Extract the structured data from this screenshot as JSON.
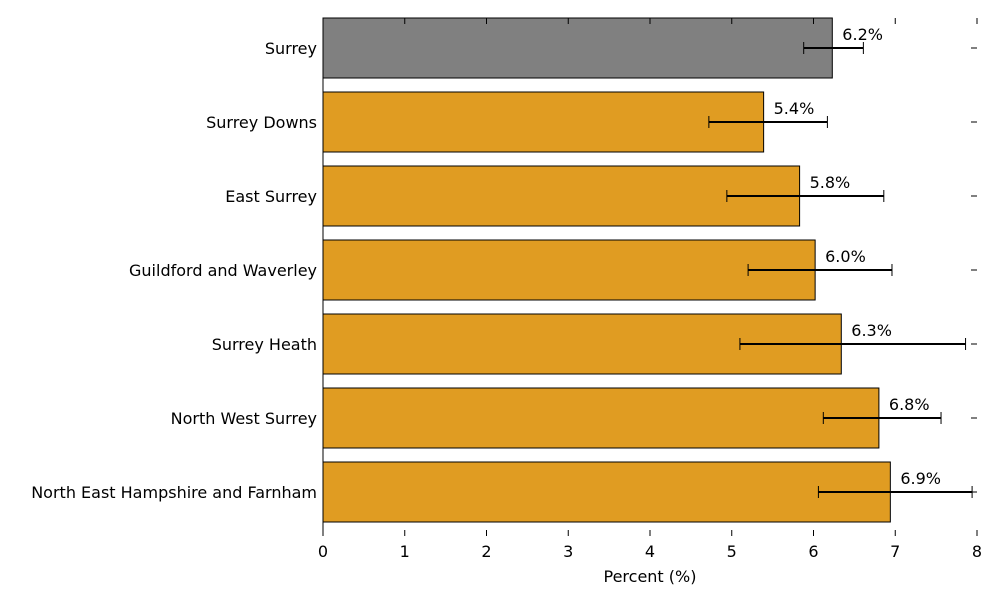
{
  "chart_data": {
    "type": "bar",
    "orientation": "horizontal",
    "categories": [
      "Surrey",
      "Surrey Downs",
      "East Surrey",
      "Guildford and Waverley",
      "Surrey Heath",
      "North West Surrey",
      "North East Hampshire and Farnham"
    ],
    "values": [
      6.23,
      5.39,
      5.83,
      6.02,
      6.34,
      6.8,
      6.94
    ],
    "data_labels": [
      "6.2%",
      "5.4%",
      "5.8%",
      "6.0%",
      "6.3%",
      "6.8%",
      "6.9%"
    ],
    "error_low": [
      5.88,
      4.72,
      4.94,
      5.2,
      5.1,
      6.12,
      6.06
    ],
    "error_high": [
      6.61,
      6.17,
      6.86,
      6.96,
      7.86,
      7.56,
      7.94
    ],
    "bar_colors": [
      "#808080",
      "#E09C22",
      "#E09C22",
      "#E09C22",
      "#E09C22",
      "#E09C22",
      "#E09C22"
    ],
    "xlabel": "Percent (%)",
    "xlim": [
      0,
      8
    ],
    "xticks": [
      "0",
      "1",
      "2",
      "3",
      "4",
      "5",
      "6",
      "7",
      "8"
    ],
    "grid": false
  }
}
